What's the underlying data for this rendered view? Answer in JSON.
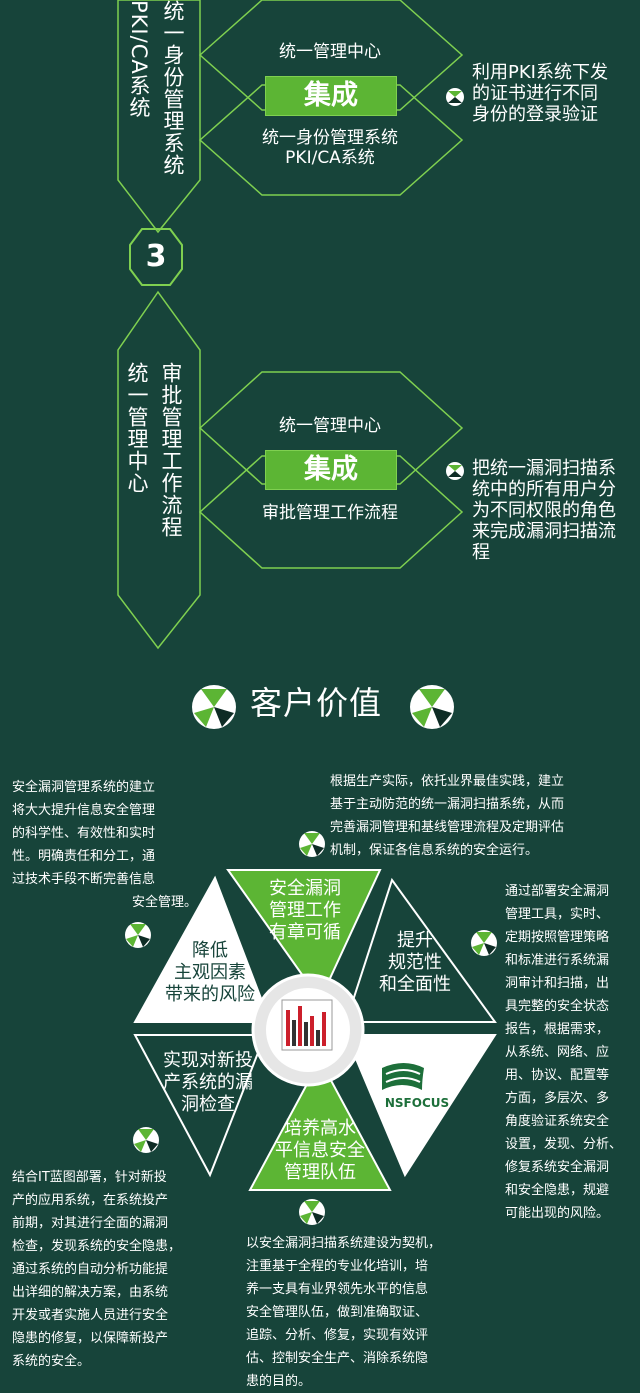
{
  "section2": {
    "vertical_left_top": [
      "统",
      "一",
      "身",
      "份"
    ],
    "vertical_left_bottom": [
      "管",
      "理",
      "系",
      "统"
    ],
    "vertical_left_alt": "PKI/CA系统",
    "step_number": "3",
    "hex_top_label": "统一管理中心",
    "integrate_label": "集成",
    "hex_bottom_lines": [
      "统一身份管理系统",
      "PKI/CA系统"
    ],
    "side_note_lines": [
      "利用PKI系统下发",
      "的证书进行不同",
      "身份的登录验证"
    ]
  },
  "section3": {
    "vertical_left": "统一管理中心",
    "vertical_right": "审批管理工作流程",
    "hex_top_label": "统一管理中心",
    "integrate_label": "集成",
    "hex_bottom_label": "审批管理工作流程",
    "side_note_lines": [
      "把统一漏洞扫描系",
      "统中的所有用户分",
      "为不同权限的角色",
      "来完成漏洞扫描流",
      "程"
    ]
  },
  "value_section": {
    "title": "客户价值",
    "petals": {
      "top": [
        "安全漏洞",
        "管理工作",
        "有章可循"
      ],
      "upper_right": [
        "提升",
        "规范性",
        "和全面性"
      ],
      "upper_left": [
        "降低",
        "主观因素",
        "带来的风险"
      ],
      "lower_left": [
        "实现对新投",
        "产系统的漏",
        "洞检查"
      ],
      "bottom": [
        "培养高水",
        "平信息安全",
        "管理队伍"
      ],
      "lower_right_logo": "NSFOCUS"
    },
    "notes": {
      "top_left": [
        "安全漏洞管理系统的建立",
        "将大大提升信息安全管理",
        "的科学性、有效性和实时",
        "性。明确责任和分工，通",
        "过技术手段不断完善信息",
        "安全管理。"
      ],
      "top_center": [
        "根据生产实际，依托业界最佳实践，建立",
        "基于主动防范的统一漏洞扫描系统，从而",
        "完善漏洞管理和基线管理流程及定期评估",
        "机制，保证各信息系统的安全运行。"
      ],
      "right": [
        "通过部署安全漏洞",
        "管理工具，实时、",
        "定期按照管理策略",
        "和标准进行系统漏",
        "洞审计和扫描，出",
        "具完整的安全状态",
        "报告，根据需求，",
        "从系统、网络、应",
        "用、协议、配置等",
        "方面，多层次、多",
        "角度验证系统安全",
        "设置，发现、分析、",
        "修复系统安全漏洞",
        "和安全隐患，规避",
        "可能出现的风险。"
      ],
      "bottom_left": [
        "结合IT蓝图部署，针对新投",
        "产的应用系统，在系统投产",
        "前期，对其进行全面的漏洞",
        "检查，发现系统的安全隐患，",
        "通过系统的自动分析功能提",
        "出详细的解决方案，由系统",
        "开发或者实施人员进行安全",
        "隐患的修复，以保障新投产",
        "系统的安全。"
      ],
      "bottom_center": [
        "以安全漏洞扫描系统建设为契机，",
        "注重基于全程的专业化培训，培",
        "养一支具有业界领先水平的信息",
        "安全管理队伍，做到准确取证、",
        "追踪、分析、修复，实现有效评",
        "估、控制安全生产、消除系统隐",
        "患的目的。"
      ]
    }
  },
  "colors": {
    "background": "#17443a",
    "accent_green": "#5cb534",
    "line_green": "#7fd050"
  }
}
